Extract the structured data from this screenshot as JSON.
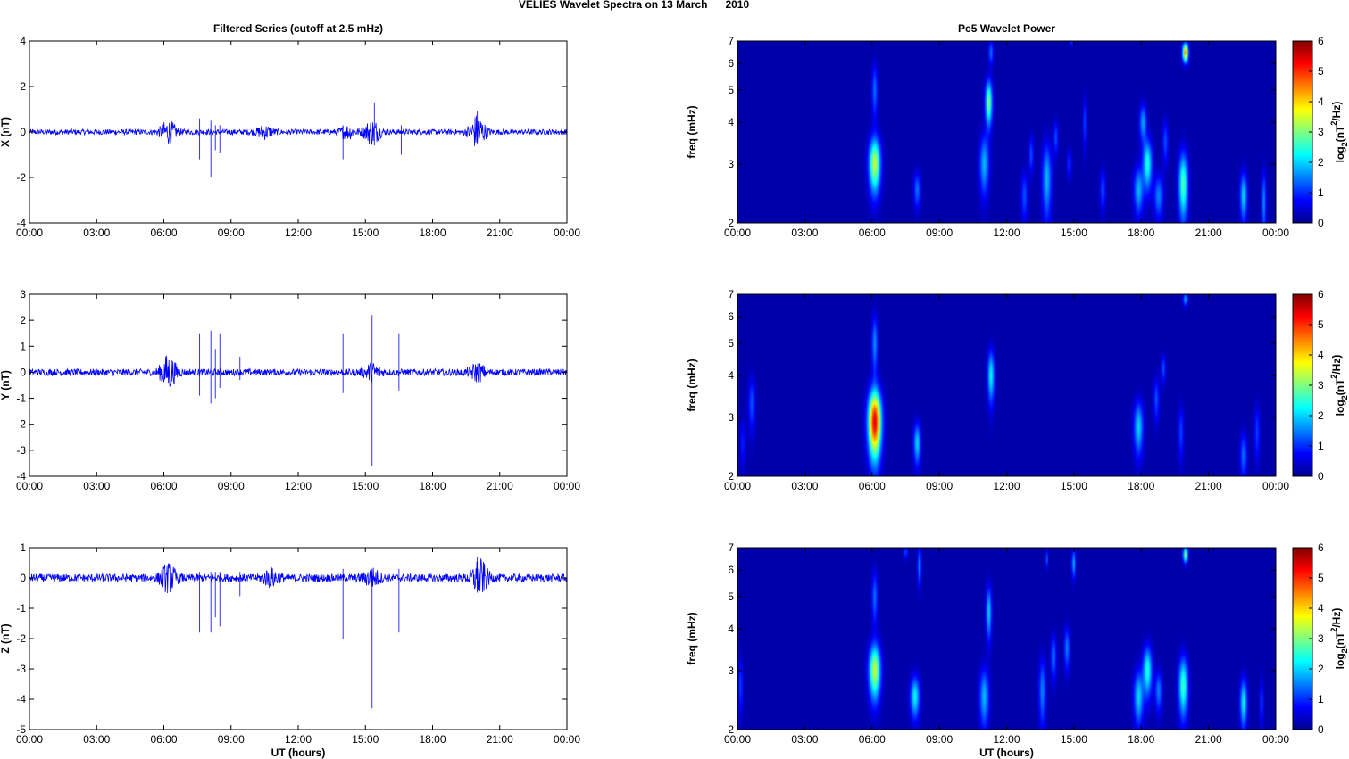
{
  "figure": {
    "title": "VELIES Wavelet Spectra on 13 March      2010"
  },
  "chart_data": [
    {
      "type": "line",
      "panel": "filtered-x",
      "title": "Filtered Series (cutoff at 2.5 mHz)",
      "xlabel": "",
      "ylabel": "X (nT)",
      "xlim": [
        "00:00",
        "00:00"
      ],
      "x_ticks": [
        "00:00",
        "03:00",
        "06:00",
        "09:00",
        "12:00",
        "15:00",
        "18:00",
        "21:00",
        "00:00"
      ],
      "ylim": [
        -4,
        4
      ],
      "y_ticks": [
        4,
        2,
        0,
        -2,
        -4
      ],
      "y_tick_labels": [
        "4",
        "2",
        "0",
        "-2",
        "-4"
      ],
      "grid": false,
      "color": "#0000ff",
      "baseline_noise_amplitude": 0.12,
      "activity_bursts": [
        {
          "time_h": 6.2,
          "amplitude": 0.45
        },
        {
          "time_h": 10.5,
          "amplitude": 0.25
        },
        {
          "time_h": 14.2,
          "amplitude": 0.25
        },
        {
          "time_h": 15.3,
          "amplitude": 0.5
        },
        {
          "time_h": 20.0,
          "amplitude": 0.7
        }
      ],
      "spikes": [
        {
          "time_h": 7.6,
          "min": -1.2,
          "max": 0.6
        },
        {
          "time_h": 8.1,
          "min": -2.0,
          "max": 0.5
        },
        {
          "time_h": 8.3,
          "min": -0.8,
          "max": 0.3
        },
        {
          "time_h": 8.5,
          "min": -0.9,
          "max": 0.3
        },
        {
          "time_h": 14.0,
          "min": -1.2,
          "max": 0.3
        },
        {
          "time_h": 15.25,
          "min": -3.8,
          "max": 3.4
        },
        {
          "time_h": 15.4,
          "min": -0.6,
          "max": 1.3
        },
        {
          "time_h": 16.6,
          "min": -1.0,
          "max": 0.3
        },
        {
          "time_h": 20.0,
          "min": -0.5,
          "max": 0.9
        }
      ]
    },
    {
      "type": "heatmap",
      "panel": "wavelet-x",
      "title": "Pc5 Wavelet Power",
      "xlabel": "",
      "ylabel": "freq (mHz)",
      "xlim": [
        "00:00",
        "00:00"
      ],
      "x_ticks": [
        "00:00",
        "03:00",
        "06:00",
        "09:00",
        "12:00",
        "15:00",
        "18:00",
        "21:00",
        "00:00"
      ],
      "ylim": [
        2,
        7
      ],
      "y_scale": "log",
      "y_ticks": [
        2,
        3,
        4,
        5,
        6,
        7
      ],
      "y_tick_labels": [
        "2",
        "3",
        "4",
        "5",
        "6",
        "7"
      ],
      "colorbar": {
        "label_main": "log",
        "label_sub": "2",
        "label_paren": "(nT",
        "label_sup": "2",
        "label_end": "/Hz)",
        "range": [
          0,
          6
        ],
        "ticks": [
          0,
          1,
          2,
          3,
          4,
          5,
          6
        ],
        "tick_labels": [
          "0",
          "1",
          "2",
          "3",
          "4",
          "5",
          "6"
        ],
        "colormap": "jet"
      },
      "blobs": [
        {
          "time_h": 6.1,
          "freq": 3.0,
          "t_width": 0.25,
          "f_width": 0.55,
          "power": 3.2
        },
        {
          "time_h": 6.1,
          "freq": 5.0,
          "t_width": 0.12,
          "f_width": 0.9,
          "power": 1.2
        },
        {
          "time_h": 8.0,
          "freq": 2.5,
          "t_width": 0.15,
          "f_width": 0.3,
          "power": 1.2
        },
        {
          "time_h": 11.0,
          "freq": 3.0,
          "t_width": 0.2,
          "f_width": 0.6,
          "power": 1.6
        },
        {
          "time_h": 11.2,
          "freq": 4.6,
          "t_width": 0.15,
          "f_width": 0.7,
          "power": 2.8
        },
        {
          "time_h": 11.3,
          "freq": 6.5,
          "t_width": 0.1,
          "f_width": 0.5,
          "power": 1.2
        },
        {
          "time_h": 12.8,
          "freq": 2.4,
          "t_width": 0.15,
          "f_width": 0.4,
          "power": 1.0
        },
        {
          "time_h": 13.1,
          "freq": 3.2,
          "t_width": 0.1,
          "f_width": 0.4,
          "power": 1.0
        },
        {
          "time_h": 13.8,
          "freq": 2.7,
          "t_width": 0.2,
          "f_width": 0.7,
          "power": 1.6
        },
        {
          "time_h": 14.2,
          "freq": 3.6,
          "t_width": 0.1,
          "f_width": 0.4,
          "power": 1.0
        },
        {
          "time_h": 14.8,
          "freq": 3.0,
          "t_width": 0.1,
          "f_width": 0.3,
          "power": 0.8
        },
        {
          "time_h": 15.5,
          "freq": 4.0,
          "t_width": 0.08,
          "f_width": 0.7,
          "power": 0.9
        },
        {
          "time_h": 16.3,
          "freq": 2.5,
          "t_width": 0.12,
          "f_width": 0.35,
          "power": 1.0
        },
        {
          "time_h": 17.9,
          "freq": 2.5,
          "t_width": 0.2,
          "f_width": 0.4,
          "power": 1.6
        },
        {
          "time_h": 18.3,
          "freq": 3.0,
          "t_width": 0.2,
          "f_width": 0.5,
          "power": 2.2
        },
        {
          "time_h": 18.1,
          "freq": 4.0,
          "t_width": 0.15,
          "f_width": 0.5,
          "power": 1.5
        },
        {
          "time_h": 18.8,
          "freq": 2.4,
          "t_width": 0.2,
          "f_width": 0.35,
          "power": 1.3
        },
        {
          "time_h": 19.1,
          "freq": 3.5,
          "t_width": 0.12,
          "f_width": 0.5,
          "power": 1.0
        },
        {
          "time_h": 19.9,
          "freq": 2.6,
          "t_width": 0.2,
          "f_width": 0.6,
          "power": 2.5
        },
        {
          "time_h": 20.0,
          "freq": 6.5,
          "t_width": 0.12,
          "f_width": 0.4,
          "power": 4.2
        },
        {
          "time_h": 22.6,
          "freq": 2.4,
          "t_width": 0.15,
          "f_width": 0.4,
          "power": 1.8
        },
        {
          "time_h": 23.5,
          "freq": 2.3,
          "t_width": 0.1,
          "f_width": 0.5,
          "power": 1.4
        },
        {
          "time_h": 14.9,
          "freq": 7.0,
          "t_width": 0.06,
          "f_width": 0.2,
          "power": 1.0
        }
      ]
    },
    {
      "type": "line",
      "panel": "filtered-y",
      "title": "",
      "xlabel": "",
      "ylabel": "Y (nT)",
      "xlim": [
        "00:00",
        "00:00"
      ],
      "x_ticks": [
        "00:00",
        "03:00",
        "06:00",
        "09:00",
        "12:00",
        "15:00",
        "18:00",
        "21:00",
        "00:00"
      ],
      "ylim": [
        -4,
        3
      ],
      "y_ticks": [
        3,
        2,
        1,
        0,
        -1,
        -2,
        -3,
        -4
      ],
      "y_tick_labels": [
        "3",
        "2",
        "1",
        "0",
        "-1",
        "-2",
        "-3",
        "-4"
      ],
      "grid": false,
      "color": "#0000ff",
      "baseline_noise_amplitude": 0.13,
      "activity_bursts": [
        {
          "time_h": 6.2,
          "amplitude": 0.6
        },
        {
          "time_h": 15.3,
          "amplitude": 0.3
        },
        {
          "time_h": 20.0,
          "amplitude": 0.3
        }
      ],
      "spikes": [
        {
          "time_h": 7.6,
          "min": -0.9,
          "max": 1.5
        },
        {
          "time_h": 8.1,
          "min": -1.2,
          "max": 1.6
        },
        {
          "time_h": 8.3,
          "min": -1.0,
          "max": 0.9
        },
        {
          "time_h": 8.5,
          "min": -0.6,
          "max": 1.5
        },
        {
          "time_h": 9.4,
          "min": -0.3,
          "max": 0.6
        },
        {
          "time_h": 14.0,
          "min": -0.8,
          "max": 1.5
        },
        {
          "time_h": 15.3,
          "min": -3.6,
          "max": 2.2
        },
        {
          "time_h": 16.5,
          "min": -0.7,
          "max": 1.5
        }
      ]
    },
    {
      "type": "heatmap",
      "panel": "wavelet-y",
      "title": "",
      "xlabel": "",
      "ylabel": "freq (mHz)",
      "xlim": [
        "00:00",
        "00:00"
      ],
      "x_ticks": [
        "00:00",
        "03:00",
        "06:00",
        "09:00",
        "12:00",
        "15:00",
        "18:00",
        "21:00",
        "00:00"
      ],
      "ylim": [
        2,
        7
      ],
      "y_scale": "log",
      "y_ticks": [
        2,
        3,
        4,
        5,
        6,
        7
      ],
      "y_tick_labels": [
        "2",
        "3",
        "4",
        "5",
        "6",
        "7"
      ],
      "colorbar": {
        "label_main": "log",
        "label_sub": "2",
        "label_paren": "(nT",
        "label_sup": "2",
        "label_end": "/Hz)",
        "range": [
          0,
          6
        ],
        "ticks": [
          0,
          1,
          2,
          3,
          4,
          5,
          6
        ],
        "tick_labels": [
          "0",
          "1",
          "2",
          "3",
          "4",
          "5",
          "6"
        ],
        "colormap": "jet"
      },
      "blobs": [
        {
          "time_h": 0.6,
          "freq": 3.3,
          "t_width": 0.15,
          "f_width": 0.6,
          "power": 1.0
        },
        {
          "time_h": 0.2,
          "freq": 2.5,
          "t_width": 0.12,
          "f_width": 0.4,
          "power": 0.7
        },
        {
          "time_h": 6.1,
          "freq": 2.9,
          "t_width": 0.28,
          "f_width": 0.65,
          "power": 5.2
        },
        {
          "time_h": 6.1,
          "freq": 5.0,
          "t_width": 0.12,
          "f_width": 1.0,
          "power": 1.4
        },
        {
          "time_h": 8.0,
          "freq": 2.5,
          "t_width": 0.15,
          "f_width": 0.35,
          "power": 1.8
        },
        {
          "time_h": 11.3,
          "freq": 4.0,
          "t_width": 0.15,
          "f_width": 0.7,
          "power": 2.0
        },
        {
          "time_h": 17.9,
          "freq": 2.8,
          "t_width": 0.2,
          "f_width": 0.5,
          "power": 1.8
        },
        {
          "time_h": 18.7,
          "freq": 3.4,
          "t_width": 0.12,
          "f_width": 0.5,
          "power": 1.0
        },
        {
          "time_h": 19.0,
          "freq": 4.2,
          "t_width": 0.1,
          "f_width": 0.4,
          "power": 1.0
        },
        {
          "time_h": 19.8,
          "freq": 2.7,
          "t_width": 0.12,
          "f_width": 0.5,
          "power": 0.9
        },
        {
          "time_h": 20.0,
          "freq": 6.8,
          "t_width": 0.1,
          "f_width": 0.3,
          "power": 1.5
        },
        {
          "time_h": 22.6,
          "freq": 2.3,
          "t_width": 0.15,
          "f_width": 0.35,
          "power": 1.2
        },
        {
          "time_h": 23.2,
          "freq": 2.7,
          "t_width": 0.12,
          "f_width": 0.5,
          "power": 0.9
        }
      ]
    },
    {
      "type": "line",
      "panel": "filtered-z",
      "title": "",
      "xlabel": "UT (hours)",
      "ylabel": "Z (nT)",
      "xlim": [
        "00:00",
        "00:00"
      ],
      "x_ticks": [
        "00:00",
        "03:00",
        "06:00",
        "09:00",
        "12:00",
        "15:00",
        "18:00",
        "21:00",
        "00:00"
      ],
      "ylim": [
        -5,
        1
      ],
      "y_ticks": [
        1,
        0,
        -1,
        -2,
        -3,
        -4,
        -5
      ],
      "y_tick_labels": [
        "1",
        "0",
        "-1",
        "-2",
        "-3",
        "-4",
        "-5"
      ],
      "grid": false,
      "color": "#0000ff",
      "baseline_noise_amplitude": 0.13,
      "activity_bursts": [
        {
          "time_h": 6.2,
          "amplitude": 0.4
        },
        {
          "time_h": 10.8,
          "amplitude": 0.25
        },
        {
          "time_h": 15.3,
          "amplitude": 0.25
        },
        {
          "time_h": 20.1,
          "amplitude": 0.55
        }
      ],
      "spikes": [
        {
          "time_h": 7.6,
          "min": -1.8,
          "max": 0.2
        },
        {
          "time_h": 8.1,
          "min": -1.8,
          "max": 0.2
        },
        {
          "time_h": 8.3,
          "min": -1.3,
          "max": 0.2
        },
        {
          "time_h": 8.5,
          "min": -1.6,
          "max": 0.2
        },
        {
          "time_h": 9.4,
          "min": -0.6,
          "max": 0.2
        },
        {
          "time_h": 14.0,
          "min": -2.0,
          "max": 0.3
        },
        {
          "time_h": 15.3,
          "min": -4.3,
          "max": 0.3
        },
        {
          "time_h": 16.5,
          "min": -1.8,
          "max": 0.3
        },
        {
          "time_h": 20.0,
          "min": -0.3,
          "max": 0.7
        }
      ]
    },
    {
      "type": "heatmap",
      "panel": "wavelet-z",
      "title": "",
      "xlabel": "UT (hours)",
      "ylabel": "freq (mHz)",
      "xlim": [
        "00:00",
        "00:00"
      ],
      "x_ticks": [
        "00:00",
        "03:00",
        "06:00",
        "09:00",
        "12:00",
        "15:00",
        "18:00",
        "21:00",
        "00:00"
      ],
      "ylim": [
        2,
        7
      ],
      "y_scale": "log",
      "y_ticks": [
        2,
        3,
        4,
        5,
        6,
        7
      ],
      "y_tick_labels": [
        "2",
        "3",
        "4",
        "5",
        "6",
        "7"
      ],
      "colorbar": {
        "label_main": "log",
        "label_sub": "2",
        "label_paren": "(nT",
        "label_sup": "2",
        "label_end": "/Hz)",
        "range": [
          0,
          6
        ],
        "ticks": [
          0,
          1,
          2,
          3,
          4,
          5,
          6
        ],
        "tick_labels": [
          "0",
          "1",
          "2",
          "3",
          "4",
          "5",
          "6"
        ],
        "colormap": "jet"
      },
      "blobs": [
        {
          "time_h": 0.1,
          "freq": 2.7,
          "t_width": 0.1,
          "f_width": 0.5,
          "power": 0.9
        },
        {
          "time_h": 6.1,
          "freq": 3.0,
          "t_width": 0.25,
          "f_width": 0.55,
          "power": 3.2
        },
        {
          "time_h": 6.1,
          "freq": 5.0,
          "t_width": 0.12,
          "f_width": 0.9,
          "power": 1.2
        },
        {
          "time_h": 7.9,
          "freq": 2.5,
          "t_width": 0.2,
          "f_width": 0.35,
          "power": 2.0
        },
        {
          "time_h": 7.5,
          "freq": 6.8,
          "t_width": 0.06,
          "f_width": 0.3,
          "power": 1.2
        },
        {
          "time_h": 8.1,
          "freq": 6.2,
          "t_width": 0.08,
          "f_width": 0.8,
          "power": 1.5
        },
        {
          "time_h": 11.0,
          "freq": 2.5,
          "t_width": 0.2,
          "f_width": 0.5,
          "power": 1.6
        },
        {
          "time_h": 11.2,
          "freq": 4.5,
          "t_width": 0.12,
          "f_width": 0.8,
          "power": 1.8
        },
        {
          "time_h": 13.6,
          "freq": 2.6,
          "t_width": 0.15,
          "f_width": 0.6,
          "power": 1.3
        },
        {
          "time_h": 14.1,
          "freq": 3.3,
          "t_width": 0.12,
          "f_width": 0.5,
          "power": 1.2
        },
        {
          "time_h": 14.7,
          "freq": 3.5,
          "t_width": 0.12,
          "f_width": 0.5,
          "power": 1.3
        },
        {
          "time_h": 15.0,
          "freq": 6.3,
          "t_width": 0.08,
          "f_width": 0.6,
          "power": 1.6
        },
        {
          "time_h": 13.8,
          "freq": 6.5,
          "t_width": 0.06,
          "f_width": 0.4,
          "power": 1.0
        },
        {
          "time_h": 17.9,
          "freq": 2.5,
          "t_width": 0.2,
          "f_width": 0.45,
          "power": 1.8
        },
        {
          "time_h": 18.3,
          "freq": 3.0,
          "t_width": 0.2,
          "f_width": 0.5,
          "power": 2.2
        },
        {
          "time_h": 18.8,
          "freq": 2.6,
          "t_width": 0.15,
          "f_width": 0.35,
          "power": 1.3
        },
        {
          "time_h": 19.9,
          "freq": 2.7,
          "t_width": 0.2,
          "f_width": 0.55,
          "power": 2.4
        },
        {
          "time_h": 20.0,
          "freq": 6.7,
          "t_width": 0.1,
          "f_width": 0.35,
          "power": 2.8
        },
        {
          "time_h": 22.6,
          "freq": 2.4,
          "t_width": 0.15,
          "f_width": 0.4,
          "power": 2.0
        },
        {
          "time_h": 23.4,
          "freq": 2.4,
          "t_width": 0.08,
          "f_width": 0.4,
          "power": 0.9
        }
      ]
    }
  ]
}
